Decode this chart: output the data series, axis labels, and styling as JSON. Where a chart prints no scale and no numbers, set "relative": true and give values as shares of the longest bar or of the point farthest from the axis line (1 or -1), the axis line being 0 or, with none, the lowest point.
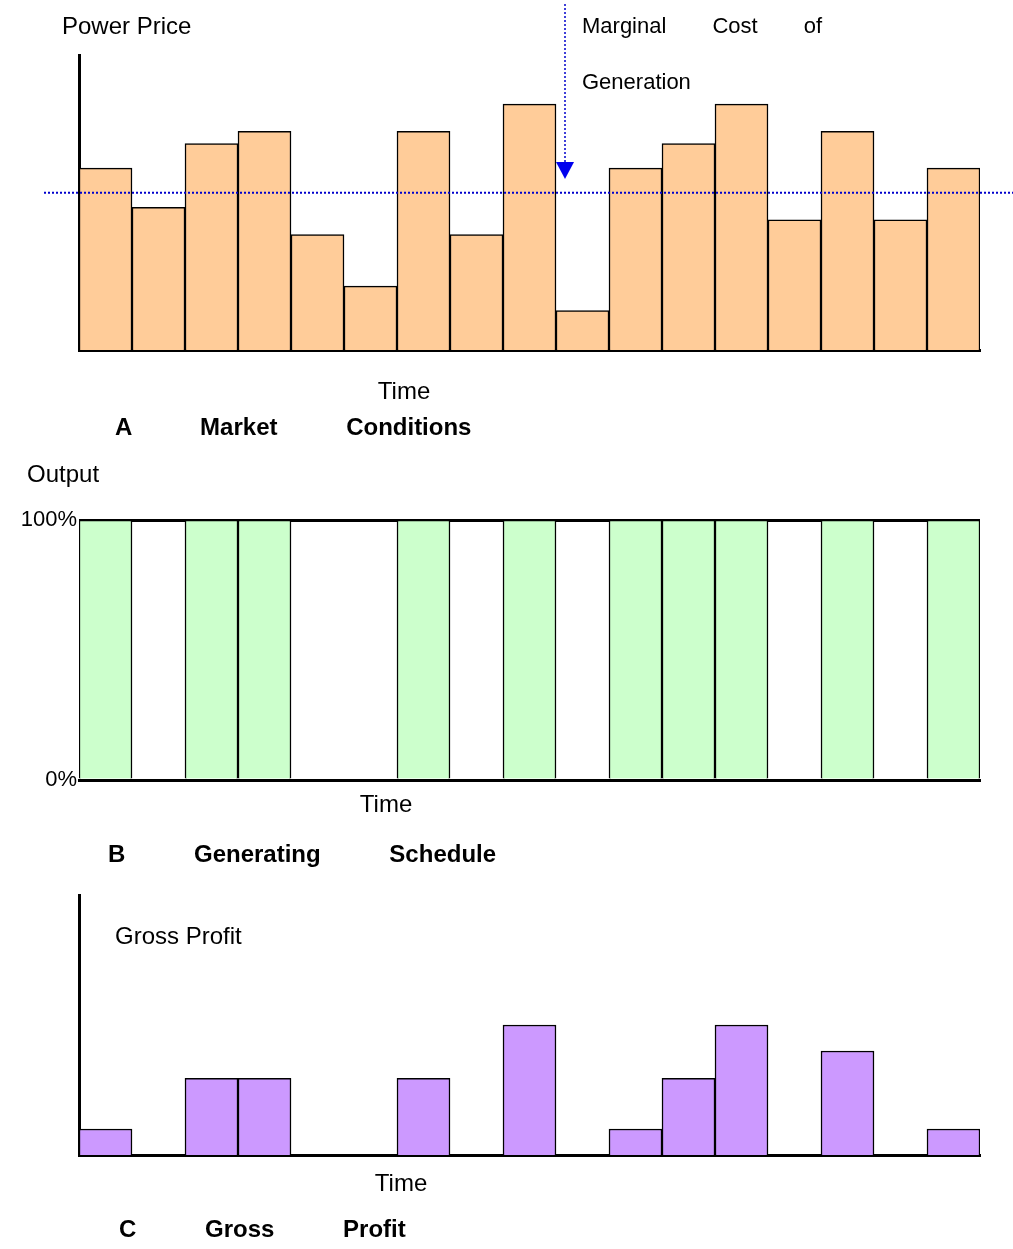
{
  "chart_data": [
    {
      "type": "bar",
      "title": "A Market Conditions",
      "ylabel": "Power Price",
      "xlabel": "Time",
      "categories": [
        null,
        null,
        null,
        null,
        null,
        null,
        null,
        null,
        null,
        null,
        null,
        null,
        null,
        null,
        null,
        null,
        null
      ],
      "values": [
        0.74,
        0.58,
        0.84,
        0.89,
        0.47,
        0.26,
        0.89,
        0.47,
        1,
        0.16,
        0.74,
        0.84,
        1,
        0.53,
        0.89,
        0.53,
        0.74
      ],
      "color": "#ffcc99",
      "relative": true,
      "ref_lines": [
        {
          "axis": "y",
          "value": 0.64,
          "label": "Marginal Cost of Generation",
          "color": "#0000cc",
          "line_style": "dotted"
        }
      ]
    },
    {
      "type": "bar",
      "title": "B Generating Schedule",
      "ylabel": "Output",
      "xlabel": "Time",
      "categories": [
        null,
        null,
        null,
        null,
        null,
        null,
        null,
        null,
        null,
        null,
        null,
        null,
        null,
        null,
        null,
        null,
        null
      ],
      "values": [
        100,
        0,
        100,
        100,
        0,
        0,
        100,
        0,
        100,
        0,
        100,
        100,
        100,
        0,
        100,
        0,
        100
      ],
      "color": "#ccffcc",
      "ylim": [
        0,
        100
      ],
      "yticks": [
        {
          "value": 0,
          "label": "0%"
        },
        {
          "value": 100,
          "label": "100%"
        }
      ],
      "grid": "y",
      "tick_labels": "y"
    },
    {
      "type": "bar",
      "title": "C Gross Profit",
      "ylabel": "Gross Profit",
      "xlabel": "Time",
      "categories": [
        null,
        null,
        null,
        null,
        null,
        null,
        null,
        null,
        null,
        null,
        null,
        null,
        null,
        null,
        null,
        null,
        null
      ],
      "values": [
        0.2,
        0,
        0.59,
        0.59,
        0,
        0,
        0.59,
        0,
        1,
        0,
        0.2,
        0.59,
        1,
        0,
        0.8,
        0,
        0.2
      ],
      "color": "#cc99ff",
      "relative": true
    }
  ]
}
